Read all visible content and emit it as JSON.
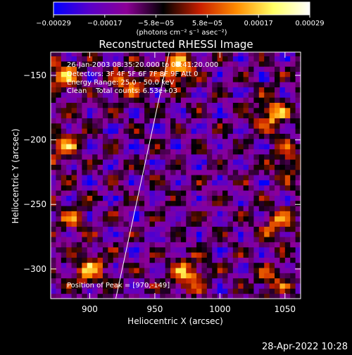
{
  "chart_data": {
    "type": "heatmap",
    "title": "Reconstructed RHESSI Image",
    "xlabel": "Heliocentric X (arcsec)",
    "ylabel": "Heliocentric Y (arcsec)",
    "xlim": [
      870,
      1062
    ],
    "ylim": [
      -323,
      -132
    ],
    "x_ticks": [
      900,
      950,
      1000,
      1050
    ],
    "x_tick_labels": [
      "900",
      "950",
      "1000",
      "1050"
    ],
    "y_ticks": [
      -150,
      -200,
      -250,
      -300
    ],
    "y_tick_labels": [
      "−150",
      "−200",
      "−250",
      "−300"
    ],
    "colorbar": {
      "min": -0.00029,
      "max": 0.00029,
      "tick_labels": [
        "−0.00029",
        "−0.00017",
        "−5.8e−05",
        "5.8e−05",
        "0.00017",
        "0.00029"
      ],
      "unit_label": "(photons cm⁻² s⁻¹ asec⁻²)",
      "colormap": [
        "#0000ff",
        "#5a00c8",
        "#8c0096",
        "#000000",
        "#c81e00",
        "#ff8c00",
        "#ffff64",
        "#ffffff"
      ]
    },
    "annotations": [
      "26-Jan-2003 08:35:20.000 to 08:41:20.000",
      "Detectors: 3F 4F 5F 6F 7F 8F 9F Att 0",
      "Energy Range: 25.0 - 50.0 keV",
      "Clean    Total counts: 6.53e+03"
    ],
    "peak_label": "Position of Peak = [970,-149]",
    "limb_line": [
      [
        920,
        -323
      ],
      [
        961,
        -132
      ]
    ],
    "hot_spots": [
      {
        "x": 967,
        "y": -145,
        "value": 0.00029
      },
      {
        "x": 880,
        "y": -150,
        "value": 0.00022
      },
      {
        "x": 930,
        "y": -155,
        "value": 0.0002
      },
      {
        "x": 1040,
        "y": -180,
        "value": 0.00024
      },
      {
        "x": 1052,
        "y": -215,
        "value": 0.00018
      },
      {
        "x": 880,
        "y": -205,
        "value": 0.0002
      },
      {
        "x": 975,
        "y": -305,
        "value": 0.00025
      },
      {
        "x": 900,
        "y": -300,
        "value": 0.00022
      },
      {
        "x": 1045,
        "y": -265,
        "value": 0.00018
      },
      {
        "x": 1040,
        "y": -310,
        "value": 0.00016
      },
      {
        "x": 885,
        "y": -260,
        "value": 0.00014
      }
    ]
  },
  "footer": {
    "timestamp": "28-Apr-2022 10:28"
  }
}
